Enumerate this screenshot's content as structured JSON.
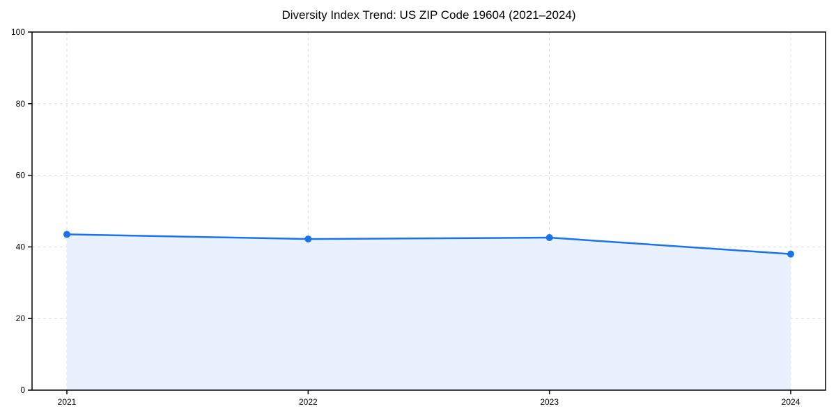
{
  "chart_data": {
    "type": "area",
    "title": "Diversity Index Trend: US ZIP Code 19604 (2021–2024)",
    "categories": [
      "2021",
      "2022",
      "2023",
      "2024"
    ],
    "series": [
      {
        "name": "Diversity Index",
        "values": [
          43.5,
          42.2,
          42.6,
          38.0
        ]
      }
    ],
    "xlabel": "",
    "ylabel": "",
    "ylim": [
      0,
      100
    ],
    "yticks": [
      0,
      20,
      40,
      60,
      80,
      100
    ],
    "grid": true,
    "grid_style": "dashed",
    "legend": "none",
    "marker": "circle",
    "colors": {
      "line": "#1a73e8",
      "fill": "#e8f1fd",
      "grid": "#dcdcdc",
      "axis": "#000000",
      "text": "#000000",
      "background": "#ffffff"
    }
  }
}
